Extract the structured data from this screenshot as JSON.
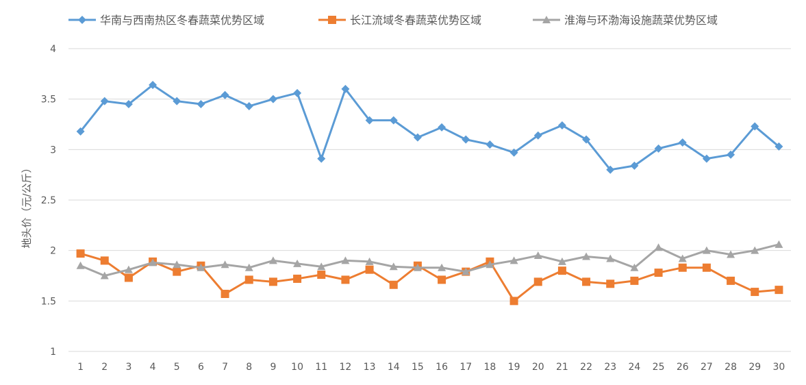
{
  "chart_data": {
    "type": "line",
    "title": "",
    "xlabel": "",
    "ylabel": "地头价（元/公斤）",
    "ylim": [
      1,
      4
    ],
    "yticks": [
      "1",
      "1.5",
      "2",
      "2.5",
      "3",
      "3.5",
      "4"
    ],
    "grid": true,
    "legend_position": "top",
    "categories": [
      "1",
      "2",
      "3",
      "4",
      "5",
      "6",
      "7",
      "8",
      "9",
      "10",
      "11",
      "12",
      "13",
      "14",
      "15",
      "16",
      "17",
      "18",
      "19",
      "20",
      "21",
      "22",
      "23",
      "24",
      "25",
      "26",
      "27",
      "28",
      "29",
      "30"
    ],
    "series": [
      {
        "name": "华南与西南热区冬春蔬菜优势区域",
        "color": "#5B9BD5",
        "marker": "diamond",
        "values": [
          3.18,
          3.48,
          3.45,
          3.64,
          3.48,
          3.45,
          3.54,
          3.43,
          3.5,
          3.56,
          2.91,
          3.6,
          3.29,
          3.29,
          3.12,
          3.22,
          3.1,
          3.05,
          2.97,
          3.14,
          3.24,
          3.1,
          2.8,
          2.84,
          3.01,
          3.07,
          2.91,
          2.95,
          3.23,
          3.03
        ]
      },
      {
        "name": "长江流域冬春蔬菜优势区域",
        "color": "#ED7D31",
        "marker": "square",
        "values": [
          1.97,
          1.9,
          1.73,
          1.89,
          1.79,
          1.85,
          1.57,
          1.71,
          1.69,
          1.72,
          1.76,
          1.71,
          1.81,
          1.66,
          1.85,
          1.71,
          1.79,
          1.89,
          1.5,
          1.69,
          1.8,
          1.69,
          1.67,
          1.7,
          1.78,
          1.83,
          1.83,
          1.7,
          1.59,
          1.61
        ]
      },
      {
        "name": "淮海与环渤海设施蔬菜优势区域",
        "color": "#A5A5A5",
        "marker": "triangle",
        "values": [
          1.85,
          1.75,
          1.81,
          1.88,
          1.86,
          1.83,
          1.86,
          1.83,
          1.9,
          1.87,
          1.84,
          1.9,
          1.89,
          1.84,
          1.83,
          1.83,
          1.79,
          1.86,
          1.9,
          1.95,
          1.89,
          1.94,
          1.92,
          1.83,
          2.03,
          1.92,
          2.0,
          1.96,
          2.0,
          2.06
        ]
      }
    ]
  }
}
